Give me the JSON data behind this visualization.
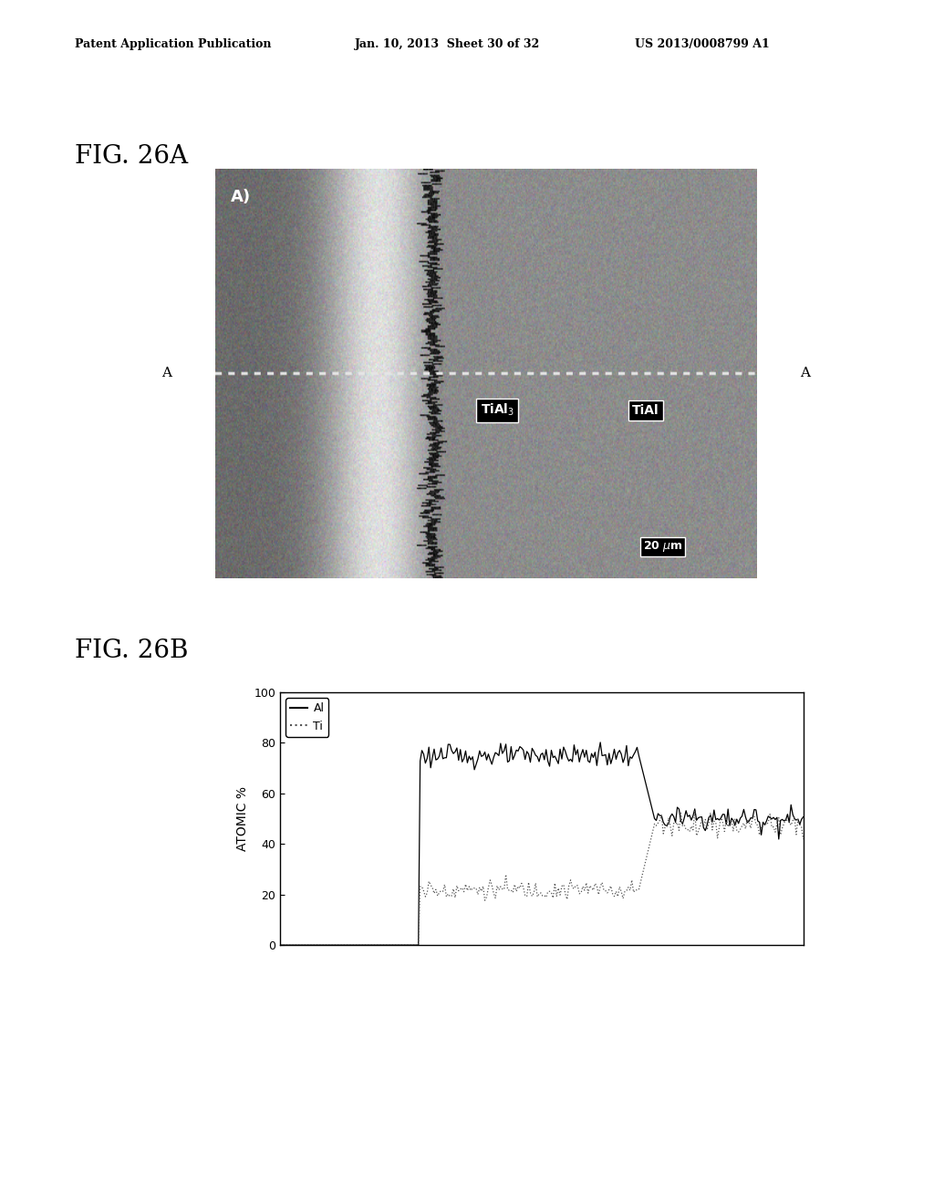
{
  "header_left": "Patent Application Publication",
  "header_center": "Jan. 10, 2013  Sheet 30 of 32",
  "header_right": "US 2013/0008799 A1",
  "fig_a_label": "FIG. 26A",
  "fig_b_label": "FIG. 26B",
  "ylabel": "ATOMIC %",
  "yticks": [
    0,
    20,
    40,
    60,
    80,
    100
  ],
  "legend_Al": "Al",
  "legend_Ti": "Ti",
  "Al_color": "#000000",
  "Ti_color": "#555555",
  "background": "#ffffff"
}
